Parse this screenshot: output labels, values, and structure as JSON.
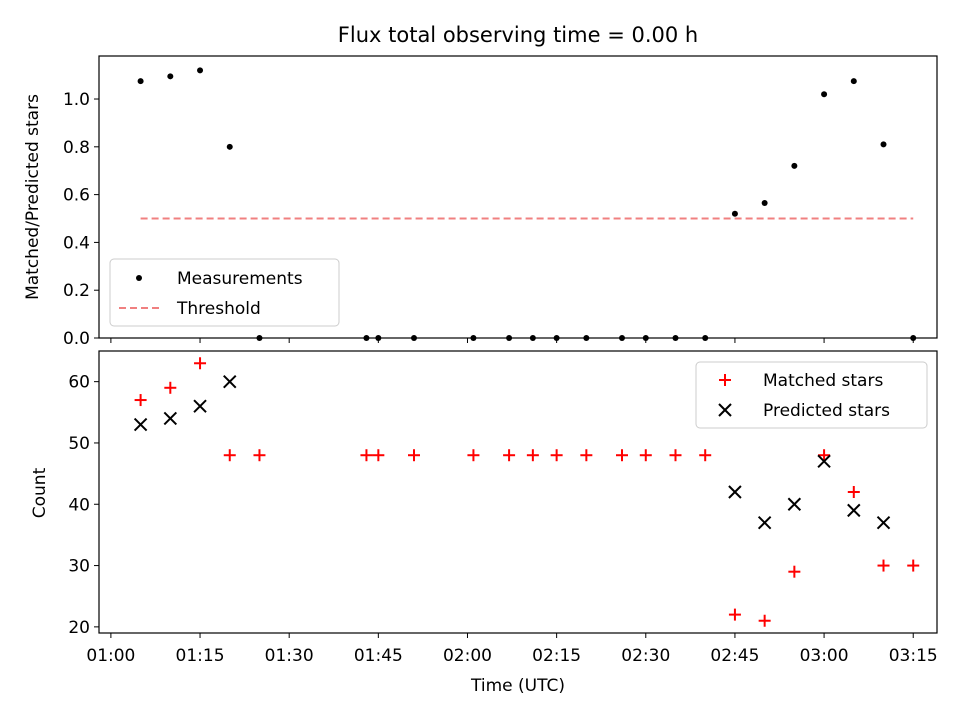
{
  "chart_data": [
    {
      "type": "scatter",
      "title": "Flux total observing time = 0.00 h",
      "ylabel": "Matched/Predicted stars",
      "xlabel": "",
      "ylim": [
        0,
        1.18
      ],
      "yticks": [
        "0.0",
        "0.2",
        "0.4",
        "0.6",
        "0.8",
        "1.0"
      ],
      "ytick_values": [
        0,
        0.2,
        0.4,
        0.6,
        0.8,
        1.0
      ],
      "xlim_minutes": [
        58,
        199
      ],
      "legend_position": "lower-left",
      "series": [
        {
          "name": "Measurements",
          "marker": "dot",
          "color": "#000000",
          "x": [
            "01:05",
            "01:10",
            "01:15",
            "01:20",
            "01:25",
            "01:43",
            "01:45",
            "01:51",
            "02:01",
            "02:07",
            "02:11",
            "02:15",
            "02:20",
            "02:26",
            "02:30",
            "02:35",
            "02:40",
            "02:45",
            "02:50",
            "02:55",
            "03:00",
            "03:05",
            "03:10",
            "03:15"
          ],
          "y": [
            1.075,
            1.095,
            1.12,
            0.8,
            0.0,
            0.0,
            0.0,
            0.0,
            0.0,
            0.0,
            0.0,
            0.0,
            0.0,
            0.0,
            0.0,
            0.0,
            0.0,
            0.52,
            0.565,
            0.72,
            1.02,
            1.075,
            0.81,
            0.0
          ]
        },
        {
          "name": "Threshold",
          "line": "dashed",
          "color": "#f08080",
          "x": [
            "01:05",
            "03:15"
          ],
          "y": [
            0.5,
            0.5
          ]
        }
      ]
    },
    {
      "type": "scatter",
      "title": "",
      "ylabel": "Count",
      "xlabel": "Time (UTC)",
      "ylim": [
        19,
        65
      ],
      "yticks": [
        "20",
        "30",
        "40",
        "50",
        "60"
      ],
      "ytick_values": [
        20,
        30,
        40,
        50,
        60
      ],
      "xlim_minutes": [
        58,
        199
      ],
      "xticks": [
        "01:00",
        "01:15",
        "01:30",
        "01:45",
        "02:00",
        "02:15",
        "02:30",
        "02:45",
        "03:00",
        "03:15"
      ],
      "legend_position": "upper-right",
      "series": [
        {
          "name": "Matched stars",
          "marker": "plus",
          "color": "#ff0000",
          "x": [
            "01:05",
            "01:10",
            "01:15",
            "01:20",
            "01:25",
            "01:43",
            "01:45",
            "01:51",
            "02:01",
            "02:07",
            "02:11",
            "02:15",
            "02:20",
            "02:26",
            "02:30",
            "02:35",
            "02:40",
            "02:45",
            "02:50",
            "02:55",
            "03:00",
            "03:05",
            "03:10",
            "03:15"
          ],
          "y": [
            57,
            59,
            63,
            48,
            48,
            48,
            48,
            48,
            48,
            48,
            48,
            48,
            48,
            48,
            48,
            48,
            48,
            22,
            21,
            29,
            48,
            42,
            30,
            30
          ]
        },
        {
          "name": "Predicted stars",
          "marker": "x",
          "color": "#000000",
          "x": [
            "01:05",
            "01:10",
            "01:15",
            "01:20",
            "02:45",
            "02:50",
            "02:55",
            "03:00",
            "03:05",
            "03:10"
          ],
          "y": [
            53,
            54,
            56,
            60,
            42,
            37,
            40,
            47,
            39,
            37
          ]
        }
      ]
    }
  ]
}
